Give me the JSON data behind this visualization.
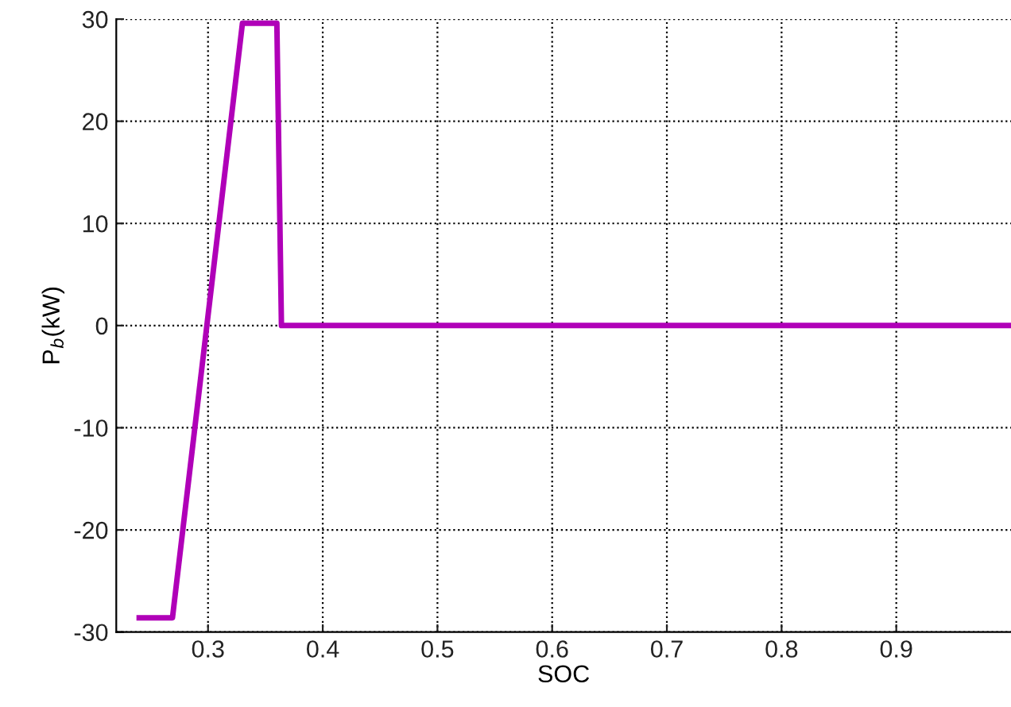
{
  "chart_data": {
    "type": "line",
    "xlabel": "SOC",
    "ylabel": "P$_{b}$(kW)",
    "xlim": [
      0.22,
      1.0
    ],
    "ylim": [
      -30,
      30
    ],
    "xticks": [
      0.3,
      0.4,
      0.5,
      0.6,
      0.7,
      0.8,
      0.9
    ],
    "yticks": [
      -30,
      -20,
      -10,
      0,
      10,
      20,
      30
    ],
    "grid": true,
    "series": [
      {
        "color": "#b000b8",
        "x": [
          0.24,
          0.269,
          0.33,
          0.36,
          0.364,
          1.0
        ],
        "values": [
          -28.6,
          -28.6,
          29.6,
          29.6,
          0,
          0
        ]
      }
    ]
  }
}
